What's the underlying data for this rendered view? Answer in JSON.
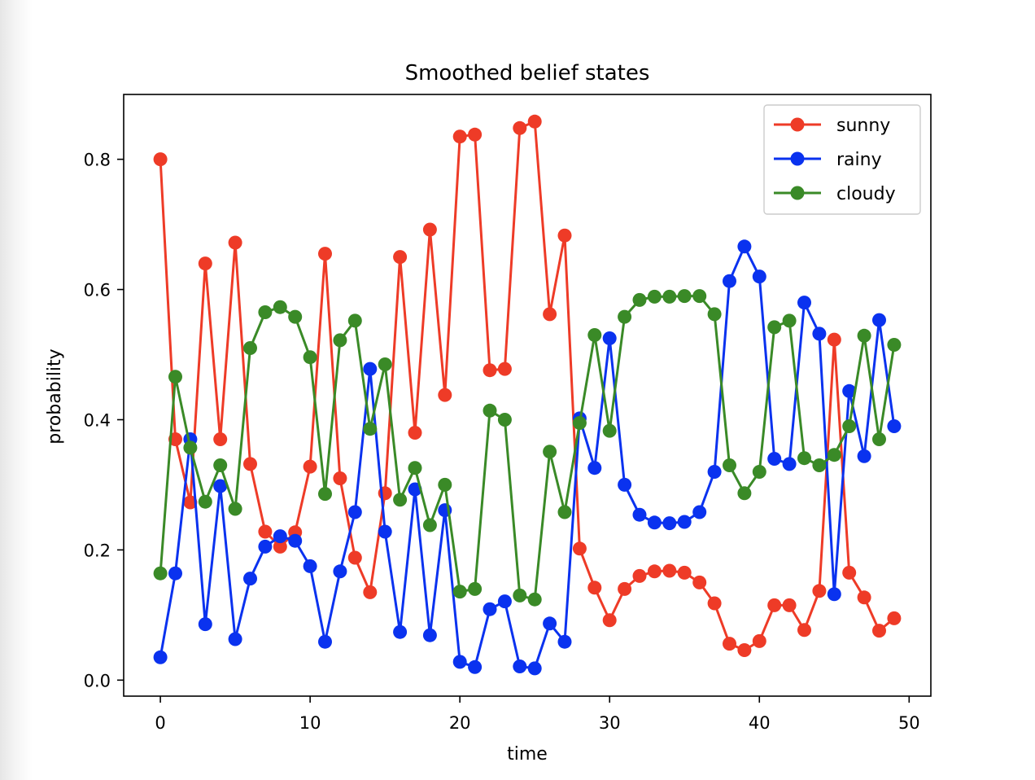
{
  "chart_data": {
    "type": "line",
    "title": "Smoothed belief states",
    "xlabel": "time",
    "ylabel": "probability",
    "xlim": [
      -2.45,
      51.45
    ],
    "ylim": [
      -0.0246,
      0.8996
    ],
    "xticks": [
      0,
      10,
      20,
      30,
      40,
      50
    ],
    "yticks": [
      0.0,
      0.2,
      0.4,
      0.6,
      0.8
    ],
    "xtick_labels": [
      "0",
      "10",
      "20",
      "30",
      "40",
      "50"
    ],
    "ytick_labels": [
      "0.0",
      "0.2",
      "0.4",
      "0.6",
      "0.8"
    ],
    "grid": false,
    "legend_position": "top-right",
    "x": [
      0,
      1,
      2,
      3,
      4,
      5,
      6,
      7,
      8,
      9,
      10,
      11,
      12,
      13,
      14,
      15,
      16,
      17,
      18,
      19,
      20,
      21,
      22,
      23,
      24,
      25,
      26,
      27,
      28,
      29,
      30,
      31,
      32,
      33,
      34,
      35,
      36,
      37,
      38,
      39,
      40,
      41,
      42,
      43,
      44,
      45,
      46,
      47,
      48,
      49
    ],
    "series": [
      {
        "name": "sunny",
        "color": "#ee3b27",
        "values": [
          0.8,
          0.37,
          0.273,
          0.64,
          0.37,
          0.672,
          0.332,
          0.228,
          0.205,
          0.227,
          0.328,
          0.655,
          0.31,
          0.188,
          0.135,
          0.287,
          0.65,
          0.38,
          0.692,
          0.438,
          0.835,
          0.838,
          0.476,
          0.478,
          0.848,
          0.858,
          0.562,
          0.683,
          0.202,
          0.142,
          0.092,
          0.14,
          0.16,
          0.167,
          0.168,
          0.165,
          0.15,
          0.118,
          0.056,
          0.046,
          0.06,
          0.115,
          0.115,
          0.077,
          0.137,
          0.523,
          0.165,
          0.127,
          0.076,
          0.095
        ]
      },
      {
        "name": "rainy",
        "color": "#0a32ef",
        "values": [
          0.035,
          0.164,
          0.37,
          0.086,
          0.298,
          0.063,
          0.156,
          0.205,
          0.221,
          0.214,
          0.175,
          0.059,
          0.167,
          0.258,
          0.478,
          0.228,
          0.074,
          0.293,
          0.069,
          0.261,
          0.028,
          0.02,
          0.109,
          0.121,
          0.021,
          0.018,
          0.087,
          0.059,
          0.402,
          0.326,
          0.525,
          0.3,
          0.254,
          0.242,
          0.241,
          0.243,
          0.258,
          0.32,
          0.613,
          0.666,
          0.62,
          0.34,
          0.332,
          0.58,
          0.532,
          0.132,
          0.444,
          0.344,
          0.553,
          0.39
        ]
      },
      {
        "name": "cloudy",
        "color": "#3a8a27",
        "values": [
          0.164,
          0.466,
          0.357,
          0.274,
          0.33,
          0.263,
          0.51,
          0.565,
          0.573,
          0.558,
          0.496,
          0.286,
          0.522,
          0.552,
          0.386,
          0.485,
          0.277,
          0.326,
          0.238,
          0.3,
          0.136,
          0.14,
          0.414,
          0.4,
          0.13,
          0.124,
          0.351,
          0.258,
          0.395,
          0.53,
          0.383,
          0.558,
          0.584,
          0.589,
          0.589,
          0.59,
          0.59,
          0.562,
          0.33,
          0.287,
          0.32,
          0.542,
          0.552,
          0.341,
          0.33,
          0.346,
          0.39,
          0.529,
          0.37,
          0.515
        ]
      }
    ]
  }
}
